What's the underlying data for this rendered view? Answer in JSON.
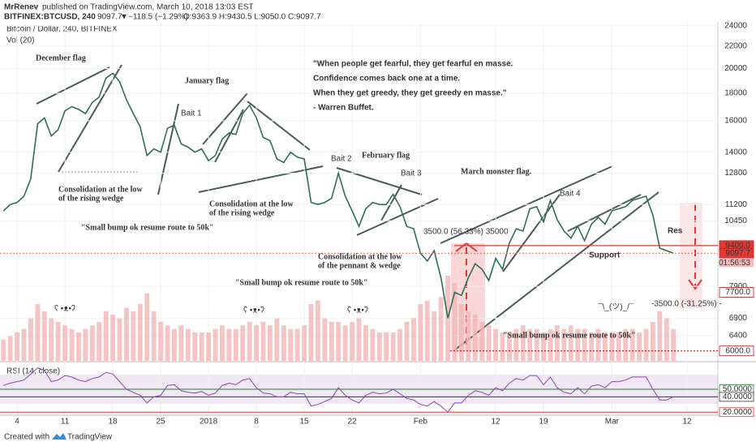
{
  "header": {
    "author": "MrRenev",
    "published": "published on TradingView.com, March 10, 2018 13:03 EST",
    "symbol": "BITFINEX:BTCUSD, 240",
    "last": "9097.7",
    "change": "−118.5 (−1.29%)",
    "ohlc": "O:9363.9 H:9430.5 L:9050.0 C:9097.7"
  },
  "footer": {
    "created": "Created with",
    "brand": "TradingView"
  },
  "chart_data": [
    {
      "type": "line",
      "title": "Bitcoin / Dollar, 240, BITFINEX",
      "subtitle": "Vol (20)",
      "log_scale": true,
      "grid": true,
      "categories": [
        null,
        null,
        "4",
        null,
        null,
        null,
        null,
        null,
        null,
        "11",
        null,
        null,
        null,
        null,
        null,
        null,
        "18",
        null,
        null,
        null,
        null,
        null,
        null,
        "25",
        null,
        null,
        null,
        null,
        null,
        null,
        "2018",
        null,
        null,
        null,
        null,
        null,
        null,
        "8",
        null,
        null,
        null,
        null,
        null,
        null,
        "15",
        null,
        null,
        null,
        null,
        null,
        null,
        "22",
        null,
        null,
        null,
        null,
        null,
        null,
        null,
        null,
        null,
        "Feb",
        null,
        null,
        null,
        null,
        null,
        null,
        null,
        null,
        null,
        null,
        "12",
        null,
        null,
        null,
        null,
        null,
        null,
        "19",
        null,
        null,
        null,
        null,
        null,
        null,
        null,
        null,
        null,
        "Mar",
        null,
        null,
        null,
        null,
        null,
        null,
        null,
        null,
        null,
        null,
        "12",
        null,
        null,
        null,
        null
      ],
      "series": [
        {
          "color": "#2e6f55",
          "values": [
            10900,
            11200,
            11300,
            11600,
            12500,
            15800,
            16200,
            15000,
            15400,
            16700,
            17000,
            16800,
            16500,
            17300,
            17700,
            19200,
            19600,
            18900,
            17500,
            16500,
            15600,
            13800,
            14200,
            14000,
            15500,
            15700,
            14500,
            14300,
            14000,
            14200,
            13500,
            13800,
            14800,
            15200,
            15100,
            16500,
            17100,
            16200,
            14900,
            14700,
            13600,
            13400,
            14000,
            13700,
            13600,
            11300,
            11200,
            11300,
            11500,
            12800,
            11600,
            10900,
            10200,
            11000,
            11300,
            11200,
            11200,
            11700,
            11100,
            10200,
            10100,
            9100,
            8800,
            9200,
            8200,
            6900,
            7700,
            7600,
            8200,
            8700,
            8500,
            8100,
            8900,
            8500,
            9500,
            10100,
            10000,
            11000,
            11100,
            10400,
            11400,
            10500,
            10000,
            9700,
            10200,
            9600,
            10300,
            10600,
            10300,
            10900,
            11000,
            11100,
            11400,
            11500,
            11600,
            10700,
            9300,
            9200,
            9097.7,
            null,
            null,
            null,
            null,
            null,
            null
          ]
        }
      ],
      "volume": [
        30,
        35,
        40,
        45,
        60,
        80,
        70,
        60,
        55,
        50,
        45,
        40,
        45,
        50,
        55,
        70,
        65,
        60,
        75,
        70,
        80,
        95,
        70,
        55,
        50,
        45,
        50,
        45,
        40,
        40,
        40,
        45,
        50,
        45,
        45,
        50,
        55,
        50,
        55,
        50,
        60,
        50,
        45,
        45,
        50,
        80,
        85,
        60,
        55,
        55,
        50,
        55,
        60,
        50,
        45,
        40,
        40,
        40,
        45,
        55,
        60,
        80,
        85,
        70,
        90,
        120,
        110,
        80,
        70,
        65,
        55,
        50,
        45,
        40,
        40,
        45,
        50,
        45,
        45,
        40,
        45,
        50,
        45,
        50,
        45,
        45,
        40,
        45,
        40,
        40,
        40,
        45,
        45,
        40,
        45,
        55,
        70,
        60,
        45,
        null,
        null,
        null,
        null,
        null,
        null
      ],
      "volume_color": "#f3b7b7",
      "ylim": [
        5750,
        24400
      ],
      "yticks": [
        24000,
        22000,
        20000,
        18000,
        16000,
        14000,
        12800,
        11200,
        10450,
        7900,
        6900,
        6400
      ],
      "price_tags": [
        {
          "value": 9400,
          "label": "9400.0"
        },
        9097.7,
        {
          "value": 7700,
          "label": "7700.0"
        },
        {
          "value": 6000,
          "label": "6000.0"
        }
      ],
      "countdown": "01:56:53",
      "quote": [
        "\"When people get fearful, they get fearful en masse.",
        "Confidence comes back one at a time.",
        "When they get greedy, they get greedy en masse.\"",
        "- Warren Buffet."
      ],
      "annotations": [
        "December flag",
        "January flag",
        "February flag",
        "March monster flag.",
        "Bait 1",
        "Bait 2",
        "Bait 3",
        "Bait 4",
        "Consolidation at the low",
        "of the rising wedge",
        "Consolidation at the low",
        "of the rising wedge",
        "Consolidation at the low",
        "of the pennant & wedge",
        "\"Small bump ok resume route to 50k\"",
        "\"Small bump ok resume route to 50k\"",
        "\"Small bump ok resume route to 50k\"",
        "ʕ •ᴥ•ʔ",
        "ʕ •ᴥ•ʔ",
        "ʕ •ᴥ•ʔ",
        "¯\\_(ツ)_/¯",
        "Support",
        "Res",
        "3500.0 (56.33%) 35000",
        "-3500.0 (-31.25%) -"
      ]
    },
    {
      "type": "line",
      "title": "RSI (14, close)",
      "series": [
        {
          "color": "#8e44ad",
          "values": [
            55,
            58,
            60,
            62,
            70,
            78,
            75,
            60,
            62,
            68,
            66,
            62,
            60,
            64,
            66,
            72,
            70,
            60,
            50,
            46,
            42,
            32,
            40,
            42,
            55,
            56,
            48,
            46,
            45,
            47,
            42,
            45,
            55,
            58,
            56,
            62,
            64,
            52,
            45,
            44,
            40,
            40,
            46,
            44,
            44,
            28,
            30,
            34,
            38,
            52,
            42,
            36,
            32,
            42,
            46,
            44,
            45,
            50,
            44,
            38,
            36,
            30,
            28,
            34,
            28,
            20,
            32,
            32,
            42,
            48,
            46,
            42,
            52,
            48,
            58,
            64,
            62,
            68,
            68,
            56,
            66,
            52,
            46,
            44,
            52,
            44,
            54,
            56,
            52,
            60,
            60,
            62,
            66,
            66,
            66,
            50,
            36,
            36,
            40,
            null,
            null,
            null,
            null,
            null,
            null
          ]
        }
      ],
      "ylim": [
        16,
        84
      ],
      "yticks": [
        {
          "value": 50,
          "label": "50.0000"
        },
        {
          "value": 40,
          "label": "40.0000"
        },
        {
          "value": 20,
          "label": "20.0000"
        }
      ]
    }
  ]
}
